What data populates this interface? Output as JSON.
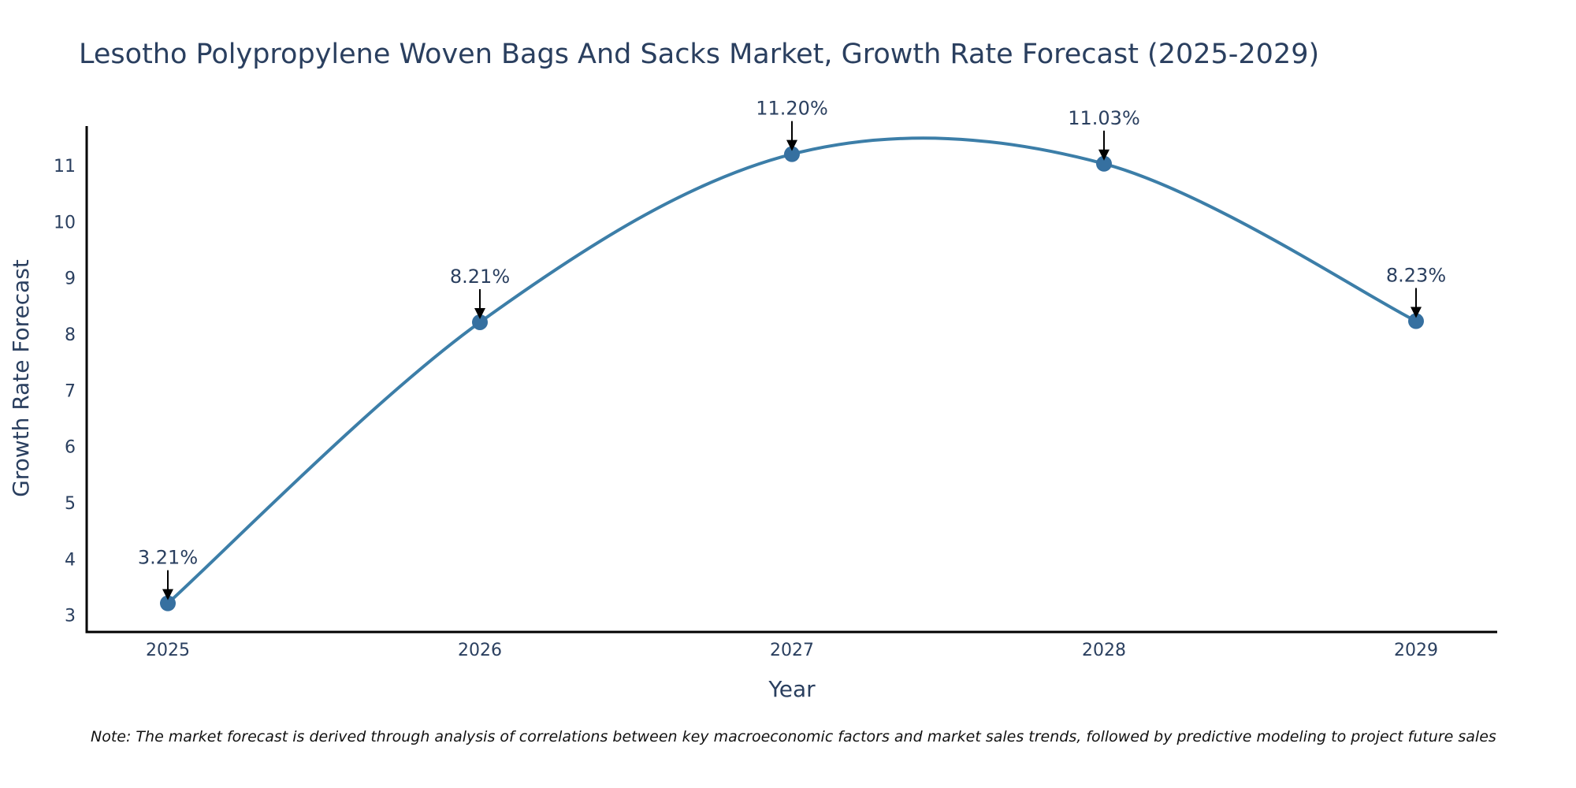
{
  "chart_data": {
    "type": "line",
    "title": "Lesotho Polypropylene Woven Bags And Sacks Market, Growth Rate Forecast (2025-2029)",
    "xlabel": "Year",
    "ylabel": "Growth Rate Forecast",
    "x": [
      "2025",
      "2026",
      "2027",
      "2028",
      "2029"
    ],
    "series": [
      {
        "values": [
          3.21,
          8.21,
          11.2,
          11.03,
          8.23
        ],
        "labels": [
          "3.21%",
          "8.21%",
          "11.20%",
          "11.03%",
          "8.23%"
        ],
        "color": "#3c7ea8",
        "marker_color": "#3670a0",
        "line_shape": "spline"
      }
    ],
    "yticks": [
      3,
      4,
      5,
      6,
      7,
      8,
      9,
      10,
      11
    ],
    "ylim": [
      2.7,
      11.7
    ],
    "grid": false,
    "legend": "none"
  },
  "note": "Note: The market forecast is derived through analysis of correlations between key macroeconomic factors and market sales trends, followed by predictive modeling to project future sales"
}
